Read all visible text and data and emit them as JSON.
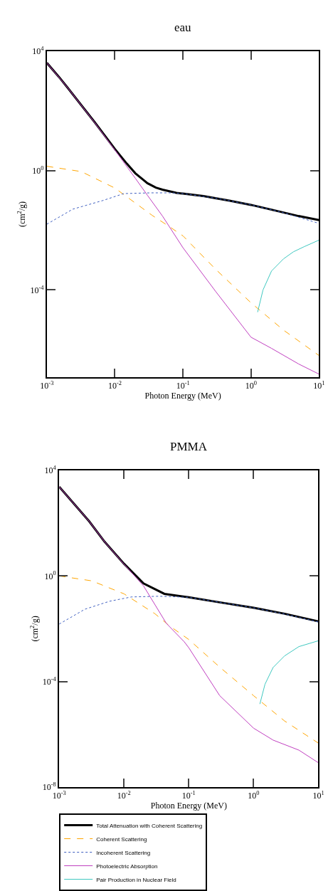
{
  "chart_data": [
    {
      "type": "line",
      "title": "eau",
      "xlabel": "Photon Energy (MeV)",
      "ylabel": "(cm$^{2}$/g)",
      "log": "xy",
      "legend": false,
      "marker": "none",
      "xlim": [
        0.001,
        10
      ],
      "ylim": [
        1.2e-07,
        10000
      ],
      "xticks": [
        {
          "value": 0.001,
          "label": "10$^{-3}$"
        },
        {
          "value": 0.01,
          "label": "10$^{-2}$"
        },
        {
          "value": 0.1,
          "label": "10$^{-1}$"
        },
        {
          "value": 1,
          "label": "10$^{0}$"
        },
        {
          "value": 10,
          "label": "10$^{1}$"
        }
      ],
      "yticks": [
        {
          "value": 10000,
          "label": "10$^{4}$"
        },
        {
          "value": 1,
          "label": "10$^{0}$"
        },
        {
          "value": 0.0001,
          "label": "10$^{-4}$"
        }
      ],
      "series": [
        {
          "color": "#000000",
          "line_style": "solid",
          "x": [
            0.001,
            0.0015,
            0.002,
            0.003,
            0.005,
            0.01,
            0.015,
            0.02,
            0.03,
            0.04,
            0.05,
            0.06,
            0.08,
            0.1,
            0.2,
            0.5,
            1,
            2,
            5,
            10
          ],
          "values": [
            4100,
            1400,
            620,
            190,
            43,
            5.3,
            1.7,
            0.81,
            0.38,
            0.27,
            0.23,
            0.21,
            0.18,
            0.17,
            0.14,
            0.097,
            0.071,
            0.049,
            0.03,
            0.022
          ]
        },
        {
          "color": "#ffa500",
          "line_style": "dashed",
          "x": [
            0.001,
            0.0032,
            0.01,
            0.035,
            0.061,
            0.1,
            0.3,
            1,
            3,
            10
          ],
          "values": [
            1.4,
            0.93,
            0.26,
            0.032,
            0.014,
            0.0065,
            0.0005,
            3.7e-05,
            4.5e-06,
            6.3e-07
          ]
        },
        {
          "color": "#4060c0",
          "line_style": "dotted",
          "x": [
            0.001,
            0.0024,
            0.0067,
            0.0135,
            0.034,
            0.07,
            0.1,
            0.3,
            1,
            3,
            10
          ],
          "values": [
            0.016,
            0.051,
            0.1,
            0.17,
            0.18,
            0.18,
            0.17,
            0.12,
            0.071,
            0.039,
            0.017
          ]
        },
        {
          "color": "#c040c0",
          "line_style": "solid",
          "x": [
            0.001,
            0.002,
            0.005,
            0.01,
            0.02,
            0.03,
            0.05,
            0.1,
            0.3,
            1,
            2,
            5,
            10
          ],
          "values": [
            4100,
            620,
            42,
            4.9,
            0.55,
            0.15,
            0.03,
            0.0026,
            9.1e-05,
            2.6e-06,
            1.1e-06,
            3.3e-07,
            1.5e-07
          ]
        },
        {
          "color": "#40c8c0",
          "line_style": "solid",
          "x": [
            1.25,
            1.5,
            2,
            3,
            4.2,
            6,
            10
          ],
          "values": [
            1.8e-05,
            0.0001,
            0.00043,
            0.0011,
            0.0019,
            0.0028,
            0.0047
          ]
        }
      ]
    },
    {
      "type": "line",
      "title": "PMMA",
      "xlabel": "Photon Energy (MeV)",
      "ylabel": "(cm$^{2}$/g)",
      "log": "xy",
      "legend": "bottom left",
      "marker": "none",
      "xlim": [
        0.001,
        10
      ],
      "ylim": [
        1e-08,
        10000
      ],
      "xticks": [
        {
          "value": 0.001,
          "label": "10$^{-3}$"
        },
        {
          "value": 0.01,
          "label": "10$^{-2}$"
        },
        {
          "value": 0.1,
          "label": "10$^{-1}$"
        },
        {
          "value": 1,
          "label": "10$^{0}$"
        },
        {
          "value": 10,
          "label": "10$^{1}$"
        }
      ],
      "yticks": [
        {
          "value": 10000,
          "label": "10$^{4}$"
        },
        {
          "value": 1,
          "label": "10$^{0}$"
        },
        {
          "value": 0.0001,
          "label": "10$^{-4}$"
        },
        {
          "value": 1e-08,
          "label": "10$^{-8}$"
        }
      ],
      "series": [
        {
          "name": "Total Attenuation with Coherent Scattering",
          "color": "#000000",
          "line_style": "solid",
          "x": [
            0.001,
            0.0029,
            0.005,
            0.01,
            0.02,
            0.042,
            0.1,
            0.3,
            1,
            3,
            10
          ],
          "values": [
            2400,
            118,
            20,
            2.9,
            0.52,
            0.21,
            0.155,
            0.1,
            0.062,
            0.037,
            0.019
          ]
        },
        {
          "name": "Coherent Scattering",
          "color": "#ffa500",
          "line_style": "dashed",
          "x": [
            0.001,
            0.0032,
            0.01,
            0.03,
            0.05,
            0.1,
            0.3,
            1,
            3,
            10
          ],
          "values": [
            1.0,
            0.65,
            0.21,
            0.037,
            0.013,
            0.0039,
            0.00035,
            2.9e-05,
            3.2e-06,
            4.6e-07
          ]
        },
        {
          "name": "Incoherent Scattering",
          "color": "#4060c0",
          "line_style": "dotted",
          "x": [
            0.001,
            0.0025,
            0.006,
            0.013,
            0.035,
            0.1,
            0.3,
            1,
            3,
            10
          ],
          "values": [
            0.015,
            0.055,
            0.11,
            0.16,
            0.17,
            0.155,
            0.1,
            0.062,
            0.036,
            0.018
          ]
        },
        {
          "name": "Photoelectric Absorption",
          "color": "#c040c0",
          "line_style": "solid",
          "x": [
            0.001,
            0.0029,
            0.005,
            0.01,
            0.02,
            0.045,
            0.085,
            0.1,
            0.3,
            1,
            2,
            5,
            10
          ],
          "values": [
            2400,
            118,
            20,
            2.8,
            0.42,
            0.016,
            0.0032,
            0.0019,
            2.9e-05,
            1.7e-06,
            6e-07,
            2.5e-07,
            8.3e-08
          ]
        },
        {
          "name": "Pair Production in Nuclear Field",
          "color": "#40c8c0",
          "line_style": "solid",
          "x": [
            1.25,
            1.5,
            2,
            3,
            5,
            10
          ],
          "values": [
            1.4e-05,
            7.9e-05,
            0.00034,
            0.00093,
            0.0021,
            0.0035
          ]
        }
      ]
    }
  ]
}
